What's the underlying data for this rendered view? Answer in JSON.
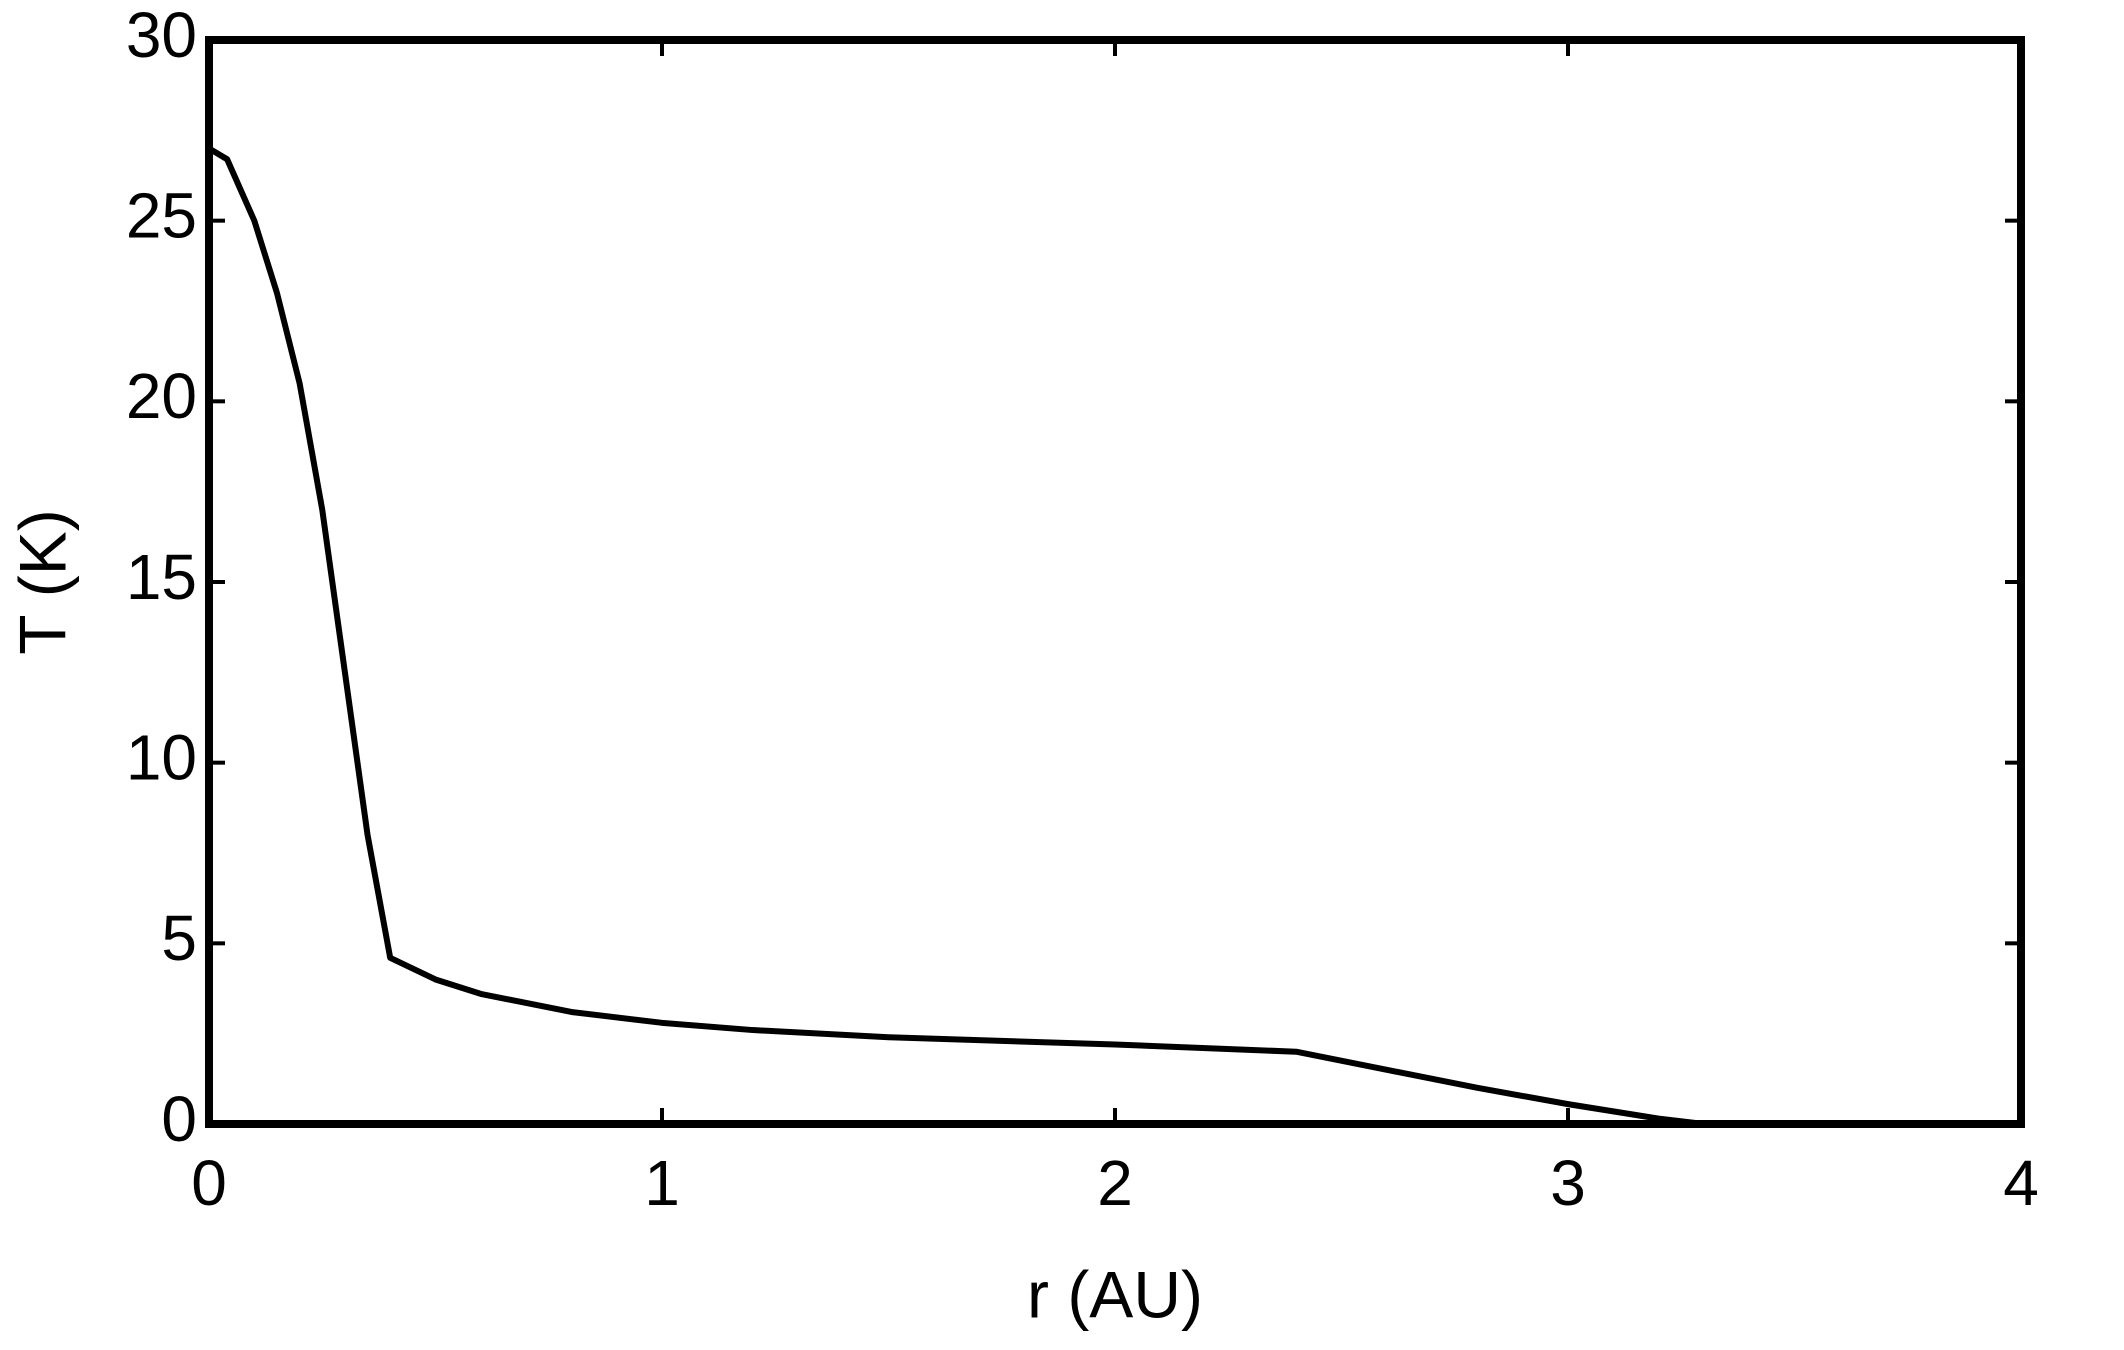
{
  "chart_data": {
    "type": "line",
    "x_label": "r (AU)",
    "y_label": "T (K)",
    "x": [
      0,
      0.04,
      0.1,
      0.15,
      0.2,
      0.25,
      0.3,
      0.35,
      0.4,
      0.5,
      0.6,
      0.8,
      1.0,
      1.2,
      1.5,
      2.0,
      2.4,
      2.6,
      2.8,
      3.0,
      3.2,
      3.3
    ],
    "series": [
      {
        "color": "#000000",
        "values": [
          27,
          26.7,
          25,
          23,
          20.5,
          17,
          12.5,
          8,
          4.6,
          4.0,
          3.6,
          3.1,
          2.8,
          2.6,
          2.4,
          2.2,
          2.0,
          1.5,
          1.0,
          0.55,
          0.15,
          0
        ]
      }
    ],
    "xlim": [
      0,
      4
    ],
    "xticks": [
      0,
      1,
      2,
      3,
      4
    ],
    "ylim": [
      0,
      30
    ],
    "yticks": [
      0,
      5,
      10,
      15,
      20,
      25,
      30
    ]
  }
}
